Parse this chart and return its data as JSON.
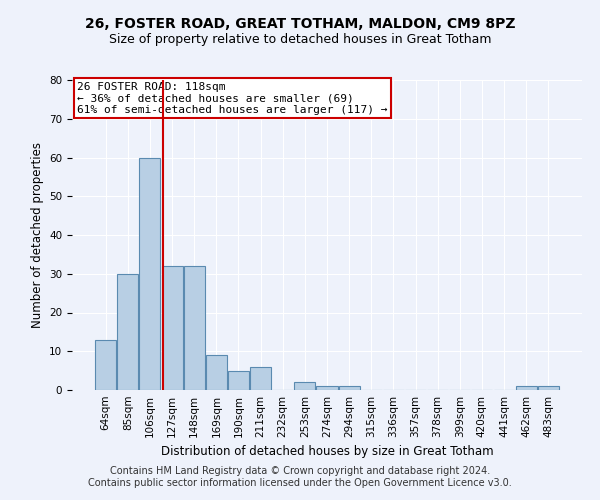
{
  "title": "26, FOSTER ROAD, GREAT TOTHAM, MALDON, CM9 8PZ",
  "subtitle": "Size of property relative to detached houses in Great Totham",
  "xlabel": "Distribution of detached houses by size in Great Totham",
  "ylabel": "Number of detached properties",
  "footer_line1": "Contains HM Land Registry data © Crown copyright and database right 2024.",
  "footer_line2": "Contains public sector information licensed under the Open Government Licence v3.0.",
  "categories": [
    "64sqm",
    "85sqm",
    "106sqm",
    "127sqm",
    "148sqm",
    "169sqm",
    "190sqm",
    "211sqm",
    "232sqm",
    "253sqm",
    "274sqm",
    "294sqm",
    "315sqm",
    "336sqm",
    "357sqm",
    "378sqm",
    "399sqm",
    "420sqm",
    "441sqm",
    "462sqm",
    "483sqm"
  ],
  "values": [
    13,
    30,
    60,
    32,
    32,
    9,
    5,
    6,
    0,
    2,
    1,
    1,
    0,
    0,
    0,
    0,
    0,
    0,
    0,
    1,
    1
  ],
  "bar_color": "#b8cfe4",
  "bar_edgecolor": "#5a8ab0",
  "ylim": [
    0,
    80
  ],
  "yticks": [
    0,
    10,
    20,
    30,
    40,
    50,
    60,
    70,
    80
  ],
  "annotation_box_text": "26 FOSTER ROAD: 118sqm\n← 36% of detached houses are smaller (69)\n61% of semi-detached houses are larger (117) →",
  "red_line_x": 2.57,
  "red_line_color": "#cc0000",
  "background_color": "#eef2fb",
  "grid_color": "#ffffff",
  "title_fontsize": 10,
  "subtitle_fontsize": 9,
  "axis_label_fontsize": 8.5,
  "tick_fontsize": 7.5,
  "footer_fontsize": 7,
  "annot_fontsize": 8
}
